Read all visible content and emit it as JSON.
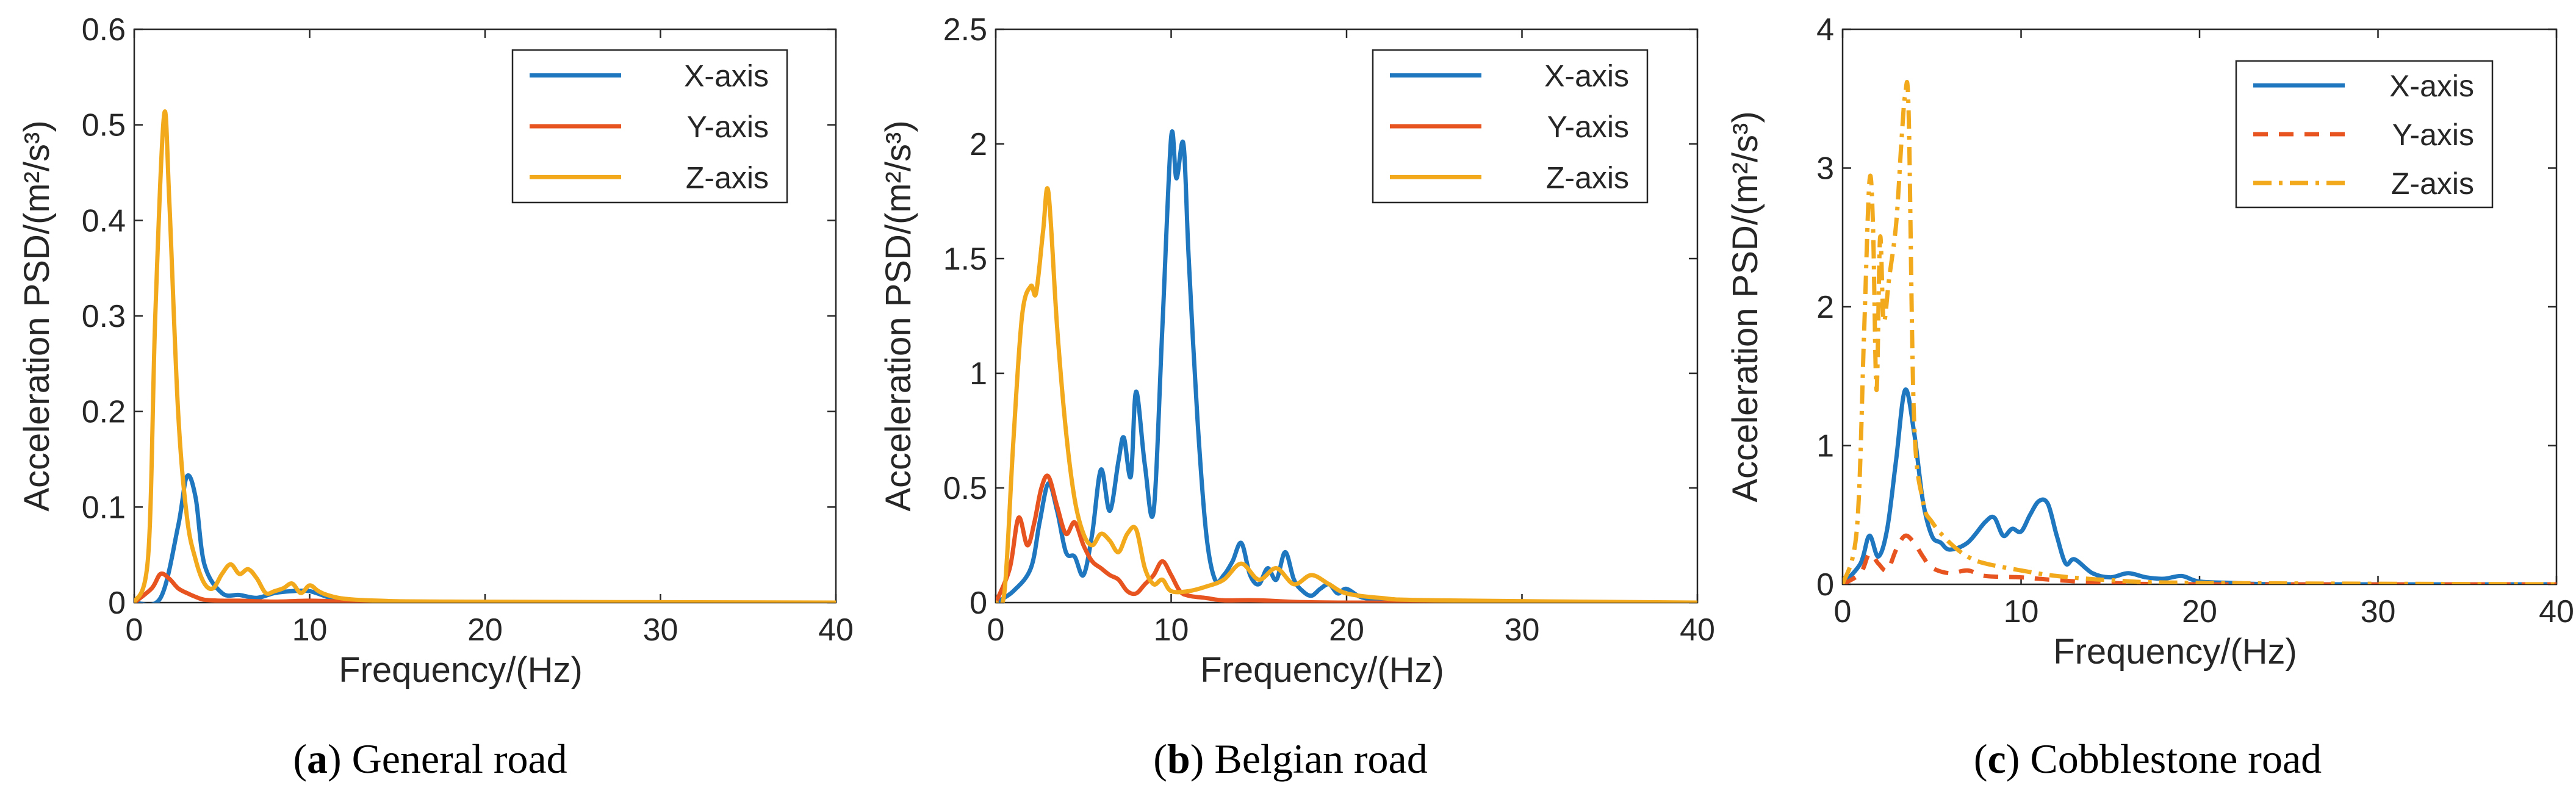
{
  "panels": [
    {
      "caption": {
        "letter": "a",
        "text": "General road"
      },
      "chart_data": {
        "type": "line",
        "xlabel": "Frequency/(Hz)",
        "ylabel": "Acceleration PSD/(m²/s³)",
        "xlim": [
          0,
          40
        ],
        "ylim": [
          0,
          0.6
        ],
        "xticks": [
          "0",
          "10",
          "20",
          "30",
          "40"
        ],
        "yticks": [
          "0",
          "0.1",
          "0.2",
          "0.3",
          "0.4",
          "0.5",
          "0.6"
        ],
        "grid": false,
        "legend_position": "top-right",
        "series": [
          {
            "name": "X-axis",
            "color": "#1f77c0",
            "dash": "solid",
            "x": [
              0,
              1.5,
              2.5,
              3.0,
              3.5,
              4.0,
              5.0,
              6.0,
              7.0,
              8.0,
              9.0,
              10.0,
              11.0,
              12.0,
              15.0,
              20.0,
              40.0
            ],
            "y": [
              0,
              0.005,
              0.08,
              0.132,
              0.11,
              0.04,
              0.01,
              0.008,
              0.005,
              0.01,
              0.012,
              0.012,
              0.006,
              0.002,
              0.001,
              0.0,
              0.0
            ]
          },
          {
            "name": "Y-axis",
            "color": "#e8541f",
            "dash": "solid",
            "x": [
              0,
              1.0,
              1.5,
              2.0,
              2.5,
              3.0,
              3.5,
              4.0,
              5.0,
              6.0,
              8.0,
              10.0,
              12.0,
              15.0,
              40.0
            ],
            "y": [
              0,
              0.015,
              0.03,
              0.025,
              0.015,
              0.01,
              0.006,
              0.003,
              0.002,
              0.002,
              0.001,
              0.002,
              0.001,
              0.0,
              0.0
            ]
          },
          {
            "name": "Z-axis",
            "color": "#f2a91c",
            "dash": "solid",
            "x": [
              0,
              0.8,
              1.2,
              1.7,
              2.0,
              2.5,
              3.0,
              3.5,
              4.0,
              4.5,
              5.0,
              5.5,
              6.0,
              6.5,
              7.0,
              7.5,
              8.0,
              8.5,
              9.0,
              9.5,
              10.0,
              10.5,
              11.0,
              12.0,
              14.0,
              18.0,
              40.0
            ],
            "y": [
              0,
              0.05,
              0.3,
              0.51,
              0.42,
              0.2,
              0.09,
              0.045,
              0.02,
              0.015,
              0.03,
              0.04,
              0.03,
              0.035,
              0.025,
              0.01,
              0.012,
              0.015,
              0.02,
              0.01,
              0.018,
              0.012,
              0.008,
              0.004,
              0.002,
              0.001,
              0.0
            ]
          }
        ]
      }
    },
    {
      "caption": {
        "letter": "b",
        "text": "Belgian road"
      },
      "chart_data": {
        "type": "line",
        "xlabel": "Frequency/(Hz)",
        "ylabel": "Acceleration PSD/(m²/s³)",
        "xlim": [
          0,
          40
        ],
        "ylim": [
          0,
          2.5
        ],
        "xticks": [
          "0",
          "10",
          "20",
          "30",
          "40"
        ],
        "yticks": [
          "0",
          "0.5",
          "1",
          "1.5",
          "2",
          "2.5"
        ],
        "grid": false,
        "legend_position": "top-right",
        "series": [
          {
            "name": "X-axis",
            "color": "#1f77c0",
            "dash": "solid",
            "x": [
              0,
              1.0,
              2.0,
              2.5,
              3.0,
              3.5,
              4.0,
              4.5,
              5.0,
              5.5,
              6.0,
              6.5,
              7.0,
              7.3,
              7.7,
              8.0,
              8.5,
              9.0,
              9.5,
              10.0,
              10.3,
              10.7,
              11.0,
              11.5,
              12.0,
              12.5,
              13.0,
              13.5,
              14.0,
              14.5,
              15.0,
              15.5,
              16.0,
              16.5,
              17.0,
              17.5,
              18.0,
              18.5,
              19.0,
              19.5,
              20.0,
              21.0,
              23.0,
              25.0,
              40.0
            ],
            "y": [
              0,
              0.05,
              0.15,
              0.35,
              0.52,
              0.4,
              0.22,
              0.2,
              0.12,
              0.3,
              0.58,
              0.4,
              0.62,
              0.72,
              0.55,
              0.92,
              0.6,
              0.4,
              1.2,
              2.03,
              1.85,
              2.0,
              1.5,
              0.8,
              0.3,
              0.1,
              0.12,
              0.18,
              0.26,
              0.12,
              0.08,
              0.15,
              0.1,
              0.22,
              0.1,
              0.05,
              0.03,
              0.06,
              0.08,
              0.04,
              0.06,
              0.02,
              0.01,
              0.0,
              0.0
            ]
          },
          {
            "name": "Y-axis",
            "color": "#e8541f",
            "dash": "solid",
            "x": [
              0,
              0.8,
              1.3,
              1.8,
              2.2,
              2.6,
              3.0,
              3.5,
              4.0,
              4.5,
              5.0,
              5.5,
              6.0,
              6.5,
              7.0,
              7.5,
              8.0,
              8.5,
              9.0,
              9.5,
              10.0,
              10.5,
              11.0,
              12.0,
              13.0,
              15.0,
              20.0,
              40.0
            ],
            "y": [
              0,
              0.15,
              0.37,
              0.25,
              0.35,
              0.5,
              0.55,
              0.42,
              0.3,
              0.35,
              0.25,
              0.18,
              0.15,
              0.12,
              0.1,
              0.05,
              0.04,
              0.08,
              0.12,
              0.18,
              0.12,
              0.05,
              0.03,
              0.02,
              0.01,
              0.01,
              0.0,
              0.0
            ]
          },
          {
            "name": "Z-axis",
            "color": "#f2a91c",
            "dash": "solid",
            "x": [
              0,
              0.5,
              1.0,
              1.5,
              2.0,
              2.3,
              2.7,
              3.0,
              3.5,
              4.0,
              4.5,
              5.0,
              5.5,
              6.0,
              6.5,
              7.0,
              7.5,
              8.0,
              8.5,
              9.0,
              9.5,
              10.0,
              11.0,
              12.0,
              13.0,
              14.0,
              15.0,
              16.0,
              17.0,
              18.0,
              19.0,
              20.0,
              22.0,
              25.0,
              40.0
            ],
            "y": [
              0,
              0.05,
              0.7,
              1.25,
              1.38,
              1.35,
              1.62,
              1.79,
              1.2,
              0.75,
              0.45,
              0.3,
              0.25,
              0.3,
              0.27,
              0.22,
              0.3,
              0.32,
              0.15,
              0.08,
              0.1,
              0.05,
              0.05,
              0.07,
              0.1,
              0.17,
              0.1,
              0.15,
              0.08,
              0.12,
              0.08,
              0.04,
              0.02,
              0.01,
              0.0
            ]
          }
        ]
      }
    },
    {
      "caption": {
        "letter": "c",
        "text": "Cobblestone road"
      },
      "chart_data": {
        "type": "line",
        "xlabel": "Frequency/(Hz)",
        "ylabel": "Acceleration PSD/(m²/s³)",
        "xlim": [
          0,
          40
        ],
        "ylim": [
          0,
          4
        ],
        "xticks": [
          "0",
          "10",
          "20",
          "30",
          "40"
        ],
        "yticks": [
          "0",
          "1",
          "2",
          "3",
          "4"
        ],
        "grid": false,
        "legend_position": "top-right",
        "series": [
          {
            "name": "X-axis",
            "color": "#1f77c0",
            "dash": "solid",
            "x": [
              0,
              1.0,
              1.5,
              2.0,
              2.5,
              3.0,
              3.5,
              4.0,
              4.5,
              5.0,
              5.5,
              6.0,
              7.0,
              8.0,
              8.5,
              9.0,
              9.5,
              10.0,
              10.5,
              11.0,
              11.5,
              12.0,
              12.5,
              13.0,
              14.0,
              15.0,
              16.0,
              17.0,
              18.0,
              19.0,
              20.0,
              22.0,
              25.0,
              40.0
            ],
            "y": [
              0,
              0.15,
              0.35,
              0.2,
              0.4,
              0.9,
              1.4,
              1.1,
              0.6,
              0.35,
              0.3,
              0.25,
              0.3,
              0.45,
              0.48,
              0.35,
              0.4,
              0.38,
              0.5,
              0.6,
              0.58,
              0.35,
              0.15,
              0.18,
              0.08,
              0.05,
              0.08,
              0.05,
              0.04,
              0.06,
              0.02,
              0.01,
              0.0,
              0.0
            ]
          },
          {
            "name": "Y-axis",
            "color": "#e8541f",
            "dash": "8 6",
            "x": [
              0,
              1.0,
              1.5,
              2.0,
              2.5,
              3.0,
              3.5,
              4.0,
              4.5,
              5.0,
              6.0,
              7.0,
              8.0,
              10.0,
              12.0,
              15.0,
              20.0,
              40.0
            ],
            "y": [
              0,
              0.08,
              0.22,
              0.15,
              0.1,
              0.25,
              0.35,
              0.3,
              0.2,
              0.12,
              0.08,
              0.1,
              0.06,
              0.05,
              0.03,
              0.01,
              0.0,
              0.0
            ]
          },
          {
            "name": "Z-axis",
            "color": "#f2a91c",
            "dash": "10 4 2 4",
            "x": [
              0,
              0.8,
              1.2,
              1.5,
              1.7,
              1.9,
              2.1,
              2.3,
              2.6,
              3.0,
              3.3,
              3.5,
              3.7,
              4.0,
              4.5,
              5.0,
              6.0,
              7.0,
              8.0,
              10.0,
              12.0,
              15.0,
              20.0,
              40.0
            ],
            "y": [
              0,
              0.4,
              1.8,
              2.9,
              2.6,
              1.4,
              2.5,
              1.9,
              2.2,
              2.6,
              3.2,
              3.52,
              3.4,
              1.2,
              0.6,
              0.45,
              0.3,
              0.2,
              0.15,
              0.1,
              0.06,
              0.03,
              0.01,
              0.0
            ]
          }
        ]
      }
    }
  ]
}
